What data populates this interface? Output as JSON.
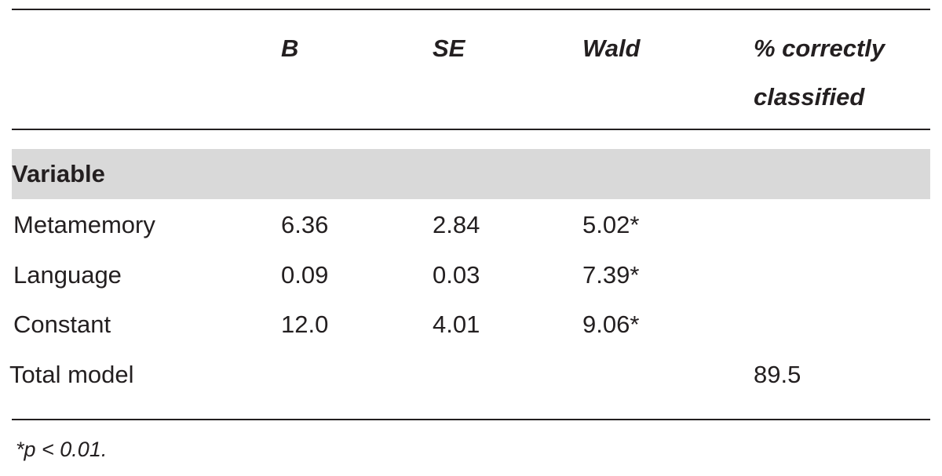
{
  "table": {
    "header": [
      "B",
      "SE",
      "Wald",
      "% correctly classified"
    ],
    "section": "Variable",
    "rows": [
      {
        "label": "Metamemory",
        "B": "6.36",
        "SE": "2.84",
        "Wald": "5.02*"
      },
      {
        "label": "Language",
        "B": "0.09",
        "SE": "0.03",
        "Wald": "7.39*"
      },
      {
        "label": "Constant",
        "B": "12.0",
        "SE": "4.01",
        "Wald": "9.06*"
      },
      {
        "label": "Total model",
        "classified": "89.5"
      }
    ],
    "footnote": "*p < 0.01."
  }
}
